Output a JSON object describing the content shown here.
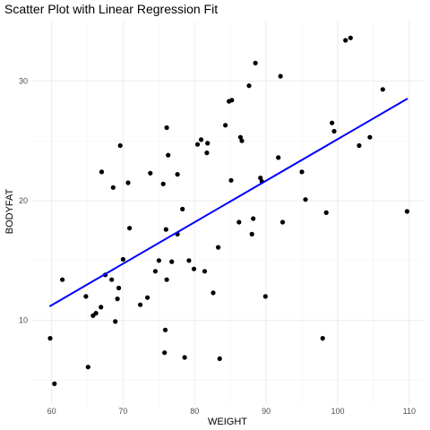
{
  "chart_data": {
    "type": "scatter",
    "title": "Scatter Plot with Linear Regression Fit",
    "xlabel": "WEIGHT",
    "ylabel": "BODYFAT",
    "xlim": [
      58,
      112
    ],
    "ylim": [
      4,
      35
    ],
    "xticks": [
      "60",
      "70",
      "80",
      "90",
      "100",
      "110"
    ],
    "yticks": [
      "10",
      "20",
      "30"
    ],
    "grid": true,
    "point_color": "#000000",
    "fit_color": "#0000ff",
    "points": [
      [
        59.8,
        8.5
      ],
      [
        60.4,
        4.7
      ],
      [
        61.5,
        13.4
      ],
      [
        64.8,
        12.0
      ],
      [
        65.1,
        6.1
      ],
      [
        65.8,
        10.4
      ],
      [
        66.2,
        10.6
      ],
      [
        66.9,
        11.1
      ],
      [
        67.0,
        22.4
      ],
      [
        67.5,
        13.8
      ],
      [
        68.4,
        13.4
      ],
      [
        68.6,
        21.1
      ],
      [
        68.9,
        9.9
      ],
      [
        69.2,
        11.8
      ],
      [
        69.4,
        12.7
      ],
      [
        69.6,
        24.6
      ],
      [
        70.0,
        15.1
      ],
      [
        70.7,
        21.5
      ],
      [
        70.9,
        17.7
      ],
      [
        72.4,
        11.3
      ],
      [
        73.4,
        11.9
      ],
      [
        73.8,
        22.3
      ],
      [
        74.5,
        14.1
      ],
      [
        75.0,
        15.0
      ],
      [
        75.6,
        21.4
      ],
      [
        75.8,
        7.3
      ],
      [
        75.9,
        9.2
      ],
      [
        76.0,
        17.6
      ],
      [
        76.1,
        13.4
      ],
      [
        76.1,
        26.1
      ],
      [
        76.3,
        23.8
      ],
      [
        76.8,
        14.9
      ],
      [
        77.6,
        17.2
      ],
      [
        77.6,
        22.2
      ],
      [
        78.3,
        19.3
      ],
      [
        78.6,
        6.9
      ],
      [
        79.2,
        15.0
      ],
      [
        79.9,
        14.3
      ],
      [
        80.4,
        24.7
      ],
      [
        80.9,
        25.1
      ],
      [
        81.4,
        14.1
      ],
      [
        81.7,
        24.0
      ],
      [
        81.8,
        24.8
      ],
      [
        82.6,
        12.3
      ],
      [
        83.3,
        16.1
      ],
      [
        83.5,
        6.8
      ],
      [
        84.3,
        26.3
      ],
      [
        84.8,
        28.3
      ],
      [
        85.1,
        21.7
      ],
      [
        85.2,
        28.4
      ],
      [
        86.2,
        18.2
      ],
      [
        86.4,
        25.3
      ],
      [
        86.6,
        25.0
      ],
      [
        87.6,
        29.6
      ],
      [
        88.0,
        17.2
      ],
      [
        88.2,
        18.5
      ],
      [
        88.5,
        31.5
      ],
      [
        89.2,
        21.9
      ],
      [
        89.4,
        21.6
      ],
      [
        89.9,
        12.0
      ],
      [
        91.7,
        23.6
      ],
      [
        92.0,
        30.4
      ],
      [
        92.3,
        18.2
      ],
      [
        95.0,
        22.4
      ],
      [
        95.5,
        20.1
      ],
      [
        97.9,
        8.5
      ],
      [
        98.4,
        19.0
      ],
      [
        99.2,
        26.5
      ],
      [
        99.5,
        25.8
      ],
      [
        101.1,
        33.4
      ],
      [
        101.8,
        33.6
      ],
      [
        103.0,
        24.6
      ],
      [
        104.5,
        25.3
      ],
      [
        106.3,
        29.3
      ],
      [
        109.7,
        19.1
      ]
    ],
    "fit_line": {
      "x": [
        59.8,
        109.7
      ],
      "y": [
        11.2,
        28.5
      ]
    }
  }
}
